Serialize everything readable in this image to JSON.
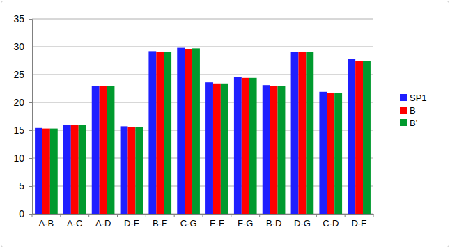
{
  "chart_data": {
    "type": "bar",
    "categories": [
      "A-B",
      "A-C",
      "A-D",
      "D-F",
      "B-E",
      "C-G",
      "E-F",
      "F-G",
      "B-D",
      "D-G",
      "C-D",
      "D-E"
    ],
    "series": [
      {
        "name": "SP1",
        "color": "#1f1fff",
        "values": [
          15.4,
          15.9,
          23.0,
          15.7,
          29.2,
          29.8,
          23.6,
          24.5,
          23.1,
          29.1,
          21.9,
          27.8
        ]
      },
      {
        "name": "B",
        "color": "#ff0000",
        "values": [
          15.3,
          15.9,
          22.9,
          15.6,
          29.0,
          29.6,
          23.4,
          24.4,
          23.0,
          29.0,
          21.7,
          27.5
        ]
      },
      {
        "name": "B'",
        "color": "#009a2e",
        "values": [
          15.3,
          15.9,
          22.9,
          15.6,
          29.0,
          29.7,
          23.4,
          24.4,
          23.0,
          29.0,
          21.7,
          27.5
        ]
      }
    ],
    "ylim": [
      0,
      35
    ],
    "yticks": [
      0,
      5,
      10,
      15,
      20,
      25,
      30,
      35
    ],
    "grid": true,
    "legend": "right"
  }
}
